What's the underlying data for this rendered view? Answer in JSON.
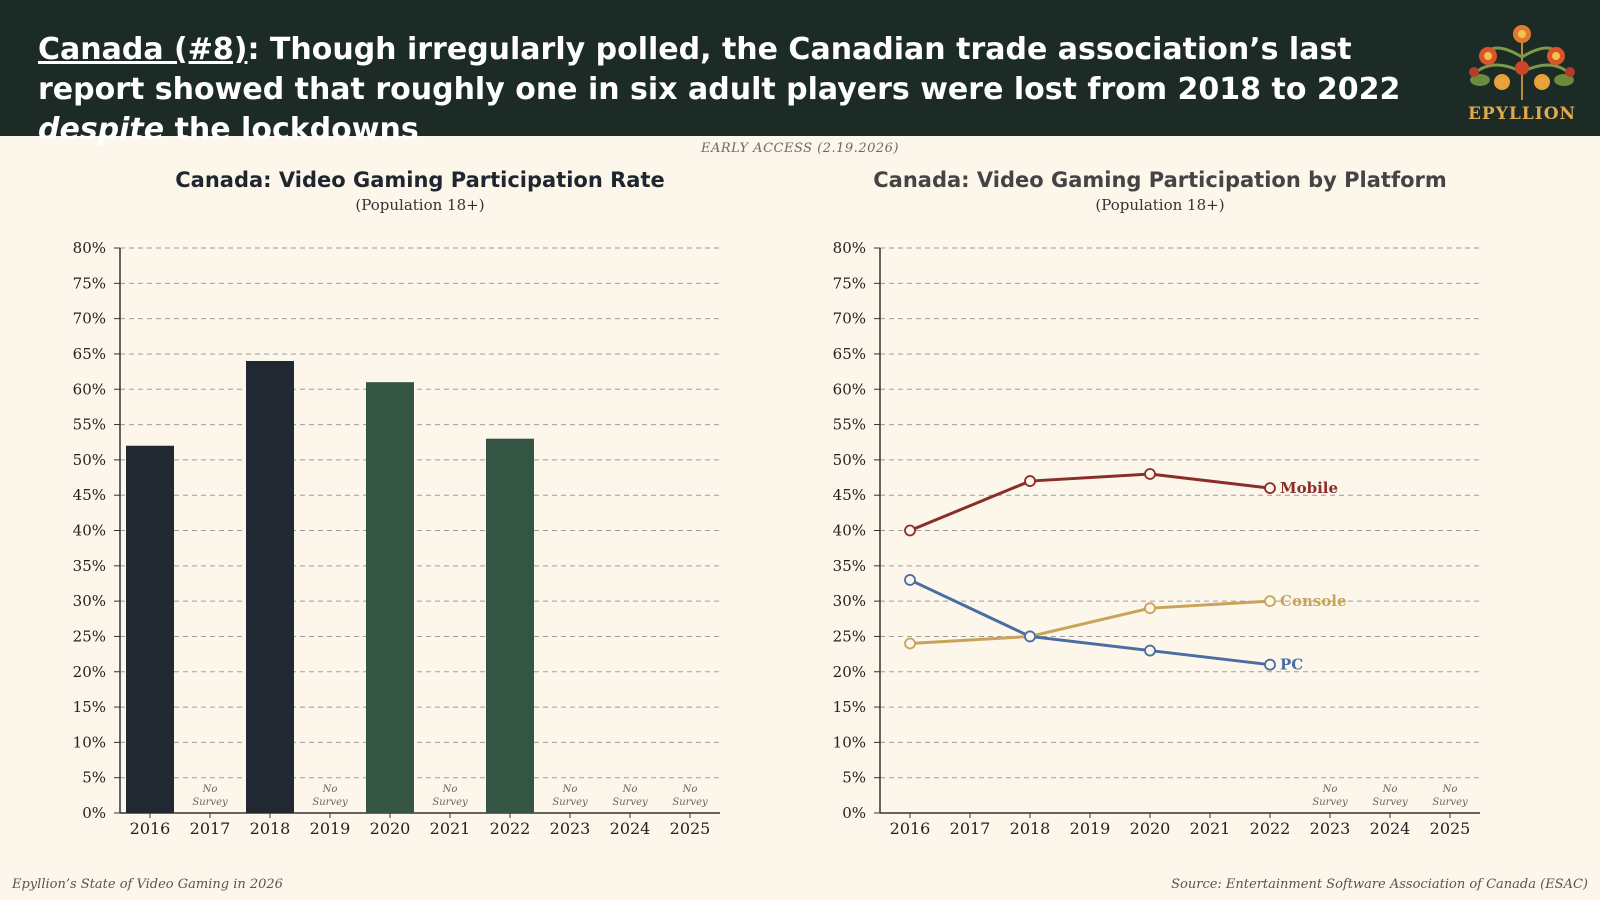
{
  "header": {
    "headline_country": "Canada (#8)",
    "headline_part1": ": Though irregularly polled, the Canadian trade association’s last report showed that roughly one in six adult players were lost from 2018 to 2022 ",
    "headline_emph": "despite",
    "headline_part2": " the lockdowns",
    "logo_text": "EPYLLION"
  },
  "early_access": "EARLY ACCESS (2.19.2026)",
  "footer": {
    "left": "Epyllion’s State of Video Gaming in 2026",
    "right": "Source: Entertainment Software Association of Canada (ESAC)"
  },
  "colors": {
    "header_bg": "#1c2b25",
    "bar_dark": "#222832",
    "bar_green": "#355544",
    "mobile": "#8b2e2a",
    "console": "#c9a35a",
    "pc": "#4a6ea3",
    "grid": "#9d9d9d"
  },
  "chart_data": [
    {
      "type": "bar",
      "title": "Canada: Video Gaming Participation Rate",
      "subtitle": "(Population 18+)",
      "categories": [
        "2016",
        "2017",
        "2018",
        "2019",
        "2020",
        "2021",
        "2022",
        "2023",
        "2024",
        "2025"
      ],
      "values": [
        52,
        null,
        64,
        null,
        61,
        null,
        53,
        null,
        null,
        null
      ],
      "bar_colors": [
        "dark",
        null,
        "dark",
        null,
        "green",
        null,
        "green",
        null,
        null,
        null
      ],
      "no_survey_label": [
        "No",
        "Survey"
      ],
      "no_survey_years": [
        "2017",
        "2019",
        "2021",
        "2023",
        "2024",
        "2025"
      ],
      "y_ticks": [
        "0%",
        "5%",
        "10%",
        "15%",
        "20%",
        "25%",
        "30%",
        "35%",
        "40%",
        "45%",
        "50%",
        "55%",
        "60%",
        "65%",
        "70%",
        "75%",
        "80%"
      ],
      "ylim": [
        0,
        80
      ],
      "grid": true
    },
    {
      "type": "line",
      "title": "Canada: Video Gaming Participation by Platform",
      "subtitle": "(Population 18+)",
      "categories": [
        "2016",
        "2017",
        "2018",
        "2019",
        "2020",
        "2021",
        "2022",
        "2023",
        "2024",
        "2025"
      ],
      "series": [
        {
          "name": "Mobile",
          "color_key": "mobile",
          "values": [
            40,
            null,
            47,
            null,
            48,
            null,
            46,
            null,
            null,
            null
          ]
        },
        {
          "name": "Console",
          "color_key": "console",
          "values": [
            24,
            null,
            25,
            null,
            29,
            null,
            30,
            null,
            null,
            null
          ]
        },
        {
          "name": "PC",
          "color_key": "pc",
          "values": [
            33,
            null,
            25,
            null,
            23,
            null,
            21,
            null,
            null,
            null
          ]
        }
      ],
      "no_survey_label": [
        "No",
        "Survey"
      ],
      "no_survey_years": [
        "2023",
        "2024",
        "2025"
      ],
      "y_ticks": [
        "0%",
        "5%",
        "10%",
        "15%",
        "20%",
        "25%",
        "30%",
        "35%",
        "40%",
        "45%",
        "50%",
        "55%",
        "60%",
        "65%",
        "70%",
        "75%",
        "80%"
      ],
      "ylim": [
        0,
        80
      ],
      "grid": true,
      "legend": "inline-end-labels"
    }
  ]
}
